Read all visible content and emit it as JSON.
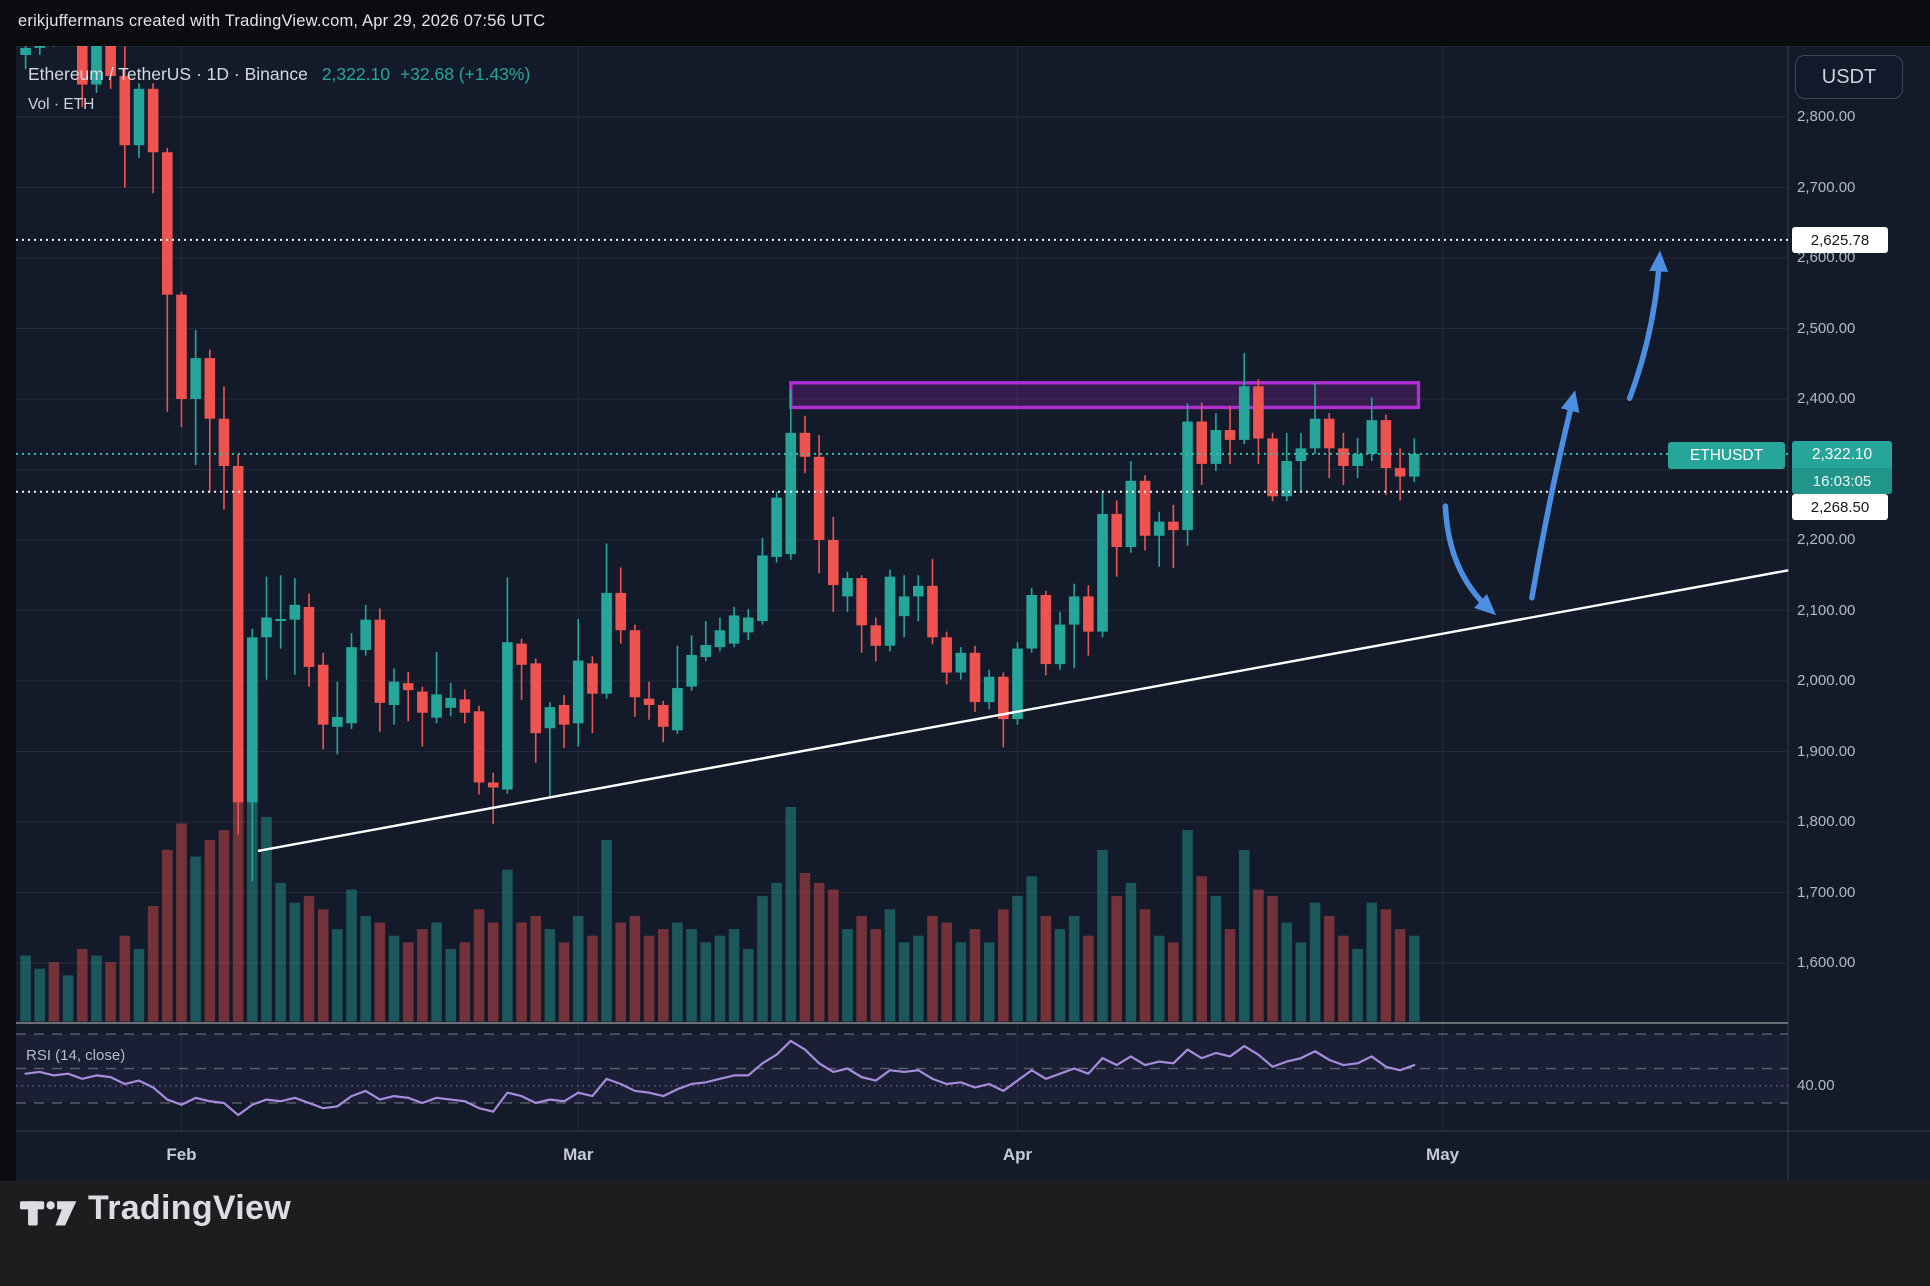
{
  "attribution": {
    "text": "erikjuffermans created with TradingView.com, Apr 29, 2026 07:56 UTC"
  },
  "header": {
    "symbol_title": "Ethereum / TetherUS · 1D · Binance",
    "price": "2,322.10",
    "change": "+32.68 (+1.43%)",
    "vol_label": "Vol · ETH"
  },
  "axis": {
    "currency": "USDT",
    "ticks": [
      {
        "label": "2,800.00",
        "value": 2800
      },
      {
        "label": "2,700.00",
        "value": 2700
      },
      {
        "label": "2,600.00",
        "value": 2600
      },
      {
        "label": "2,500.00",
        "value": 2500
      },
      {
        "label": "2,400.00",
        "value": 2400
      },
      {
        "label": "2,200.00",
        "value": 2200
      },
      {
        "label": "2,100.00",
        "value": 2100
      },
      {
        "label": "2,000.00",
        "value": 2000
      },
      {
        "label": "1,900.00",
        "value": 1900
      },
      {
        "label": "1,800.00",
        "value": 1800
      },
      {
        "label": "1,700.00",
        "value": 1700
      },
      {
        "label": "1,600.00",
        "value": 1600
      }
    ]
  },
  "levels": {
    "high_target": {
      "label": "2,625.78",
      "value": 2625.78
    },
    "current": {
      "symbol_label": "ETHUSDT",
      "label": "2,322.10",
      "countdown": "16:03:05",
      "value": 2322.1
    },
    "support": {
      "label": "2,268.50",
      "value": 2268.5
    }
  },
  "rsi": {
    "label": "RSI (14, close)",
    "tick": "40.00",
    "tick_value": 40
  },
  "time_axis": {
    "months": [
      {
        "label": "Feb",
        "bar_index": 11
      },
      {
        "label": "Mar",
        "bar_index": 39
      },
      {
        "label": "Apr",
        "bar_index": 70
      },
      {
        "label": "May",
        "bar_index": 100
      }
    ]
  },
  "footer": {
    "brand": "TradingView"
  },
  "colors": {
    "up": "#26a69a",
    "down": "#ef5350",
    "background": "#131a2a",
    "box_purple": "#b02fd2",
    "arrow_blue": "#4b8ee2",
    "current_line": "#35bfae",
    "trendline": "#ffffff",
    "rsi_line": "#a78bdc"
  },
  "chart_data": {
    "type": "candlestick",
    "symbol": "ETHUSDT",
    "exchange": "Binance",
    "interval": "1D",
    "title": "Ethereum / TetherUS 1D Binance",
    "visible_price_range": [
      1515,
      2909
    ],
    "rsi_bands": [
      70,
      50,
      30
    ],
    "levels": {
      "resistance_target": 2625.78,
      "last_price": 2322.1,
      "support": 2268.5
    },
    "resistance_box": {
      "from_bar": 54,
      "to_bar": 98.3,
      "top_price": 2423,
      "bottom_price": 2388
    },
    "trendline": {
      "from_bar": 16.4,
      "from_price": 1759,
      "to_bar": 124.4,
      "to_price": 2157
    },
    "arrows": [
      {
        "dir": "down",
        "from_bar": 100.2,
        "from_price": 2248,
        "ctrl_bar": 100.4,
        "ctrl_price": 2155,
        "to_bar": 103.3,
        "to_price": 2102
      },
      {
        "dir": "up",
        "from_bar": 106.3,
        "from_price": 2118,
        "ctrl_bar": 107.5,
        "ctrl_price": 2260,
        "to_bar": 109.2,
        "to_price": 2400
      },
      {
        "dir": "up",
        "from_bar": 113.2,
        "from_price": 2401,
        "ctrl_bar": 115.0,
        "ctrl_price": 2498,
        "to_bar": 115.3,
        "to_price": 2598
      }
    ],
    "candles_format": [
      "open",
      "high",
      "low",
      "close",
      "relative_volume",
      "rsi14"
    ],
    "candles": [
      [
        2888,
        2904,
        2868,
        2898,
        0.2,
        47
      ],
      [
        2898,
        2960,
        2888,
        2950,
        0.16,
        48
      ],
      [
        2950,
        2966,
        2900,
        2910,
        0.18,
        46
      ],
      [
        2910,
        2956,
        2902,
        2948,
        0.14,
        47
      ],
      [
        2948,
        2956,
        2814,
        2846,
        0.22,
        44
      ],
      [
        2846,
        2906,
        2834,
        2902,
        0.2,
        46
      ],
      [
        2902,
        2948,
        2840,
        2858,
        0.18,
        45
      ],
      [
        2858,
        2900,
        2700,
        2760,
        0.26,
        41
      ],
      [
        2760,
        2848,
        2742,
        2840,
        0.22,
        43
      ],
      [
        2840,
        2848,
        2692,
        2750,
        0.35,
        39
      ],
      [
        2750,
        2756,
        2382,
        2548,
        0.52,
        32
      ],
      [
        2548,
        2552,
        2360,
        2400,
        0.6,
        29
      ],
      [
        2400,
        2498,
        2306,
        2458,
        0.5,
        33
      ],
      [
        2458,
        2470,
        2268,
        2372,
        0.55,
        31
      ],
      [
        2372,
        2418,
        2243,
        2305,
        0.58,
        30
      ],
      [
        2305,
        2322,
        1782,
        1828,
        0.8,
        23
      ],
      [
        1828,
        2074,
        1716,
        2062,
        1.0,
        29
      ],
      [
        2062,
        2148,
        2002,
        2090,
        0.62,
        32
      ],
      [
        2085,
        2150,
        2046,
        2088,
        0.42,
        31
      ],
      [
        2087,
        2146,
        2009,
        2108,
        0.36,
        33
      ],
      [
        2105,
        2124,
        1992,
        2020,
        0.38,
        30
      ],
      [
        2023,
        2040,
        1903,
        1938,
        0.34,
        27
      ],
      [
        1935,
        1999,
        1896,
        1949,
        0.28,
        28
      ],
      [
        1940,
        2068,
        1932,
        2048,
        0.4,
        34
      ],
      [
        2044,
        2108,
        2036,
        2087,
        0.32,
        37
      ],
      [
        2087,
        2103,
        1928,
        1969,
        0.3,
        32
      ],
      [
        1966,
        2018,
        1938,
        1999,
        0.26,
        34
      ],
      [
        1997,
        2013,
        1943,
        1987,
        0.24,
        33
      ],
      [
        1985,
        1992,
        1907,
        1955,
        0.28,
        30
      ],
      [
        1948,
        2041,
        1940,
        1981,
        0.3,
        33
      ],
      [
        1962,
        1997,
        1950,
        1976,
        0.22,
        32
      ],
      [
        1974,
        1988,
        1940,
        1955,
        0.24,
        31
      ],
      [
        1957,
        1965,
        1839,
        1856,
        0.34,
        27
      ],
      [
        1856,
        1870,
        1797,
        1849,
        0.3,
        25
      ],
      [
        1846,
        2147,
        1840,
        2055,
        0.46,
        36
      ],
      [
        2053,
        2060,
        1973,
        2023,
        0.3,
        34
      ],
      [
        2025,
        2032,
        1884,
        1926,
        0.32,
        30
      ],
      [
        1933,
        1970,
        1836,
        1963,
        0.28,
        32
      ],
      [
        1966,
        1980,
        1905,
        1938,
        0.24,
        31
      ],
      [
        1940,
        2088,
        1907,
        2029,
        0.32,
        36
      ],
      [
        2025,
        2035,
        1926,
        1982,
        0.26,
        34
      ],
      [
        1982,
        2195,
        1975,
        2125,
        0.55,
        44
      ],
      [
        2125,
        2161,
        2053,
        2072,
        0.3,
        41
      ],
      [
        2072,
        2080,
        1949,
        1977,
        0.32,
        37
      ],
      [
        1975,
        1999,
        1945,
        1966,
        0.26,
        36
      ],
      [
        1966,
        1972,
        1913,
        1935,
        0.28,
        34
      ],
      [
        1930,
        2050,
        1925,
        1990,
        0.3,
        38
      ],
      [
        1992,
        2065,
        1986,
        2037,
        0.28,
        41
      ],
      [
        2034,
        2085,
        2028,
        2051,
        0.24,
        42
      ],
      [
        2048,
        2090,
        2042,
        2072,
        0.26,
        44
      ],
      [
        2053,
        2105,
        2048,
        2093,
        0.28,
        46
      ],
      [
        2069,
        2102,
        2058,
        2090,
        0.22,
        46
      ],
      [
        2085,
        2203,
        2080,
        2178,
        0.38,
        53
      ],
      [
        2176,
        2268,
        2168,
        2260,
        0.42,
        58
      ],
      [
        2180,
        2413,
        2172,
        2352,
        0.65,
        66
      ],
      [
        2352,
        2376,
        2295,
        2318,
        0.45,
        61
      ],
      [
        2318,
        2349,
        2153,
        2200,
        0.42,
        53
      ],
      [
        2200,
        2233,
        2098,
        2136,
        0.4,
        48
      ],
      [
        2120,
        2155,
        2098,
        2146,
        0.28,
        50
      ],
      [
        2146,
        2150,
        2040,
        2079,
        0.32,
        45
      ],
      [
        2079,
        2090,
        2028,
        2050,
        0.28,
        43
      ],
      [
        2050,
        2158,
        2042,
        2148,
        0.34,
        49
      ],
      [
        2092,
        2150,
        2062,
        2120,
        0.24,
        48
      ],
      [
        2120,
        2150,
        2085,
        2135,
        0.26,
        49
      ],
      [
        2135,
        2173,
        2052,
        2062,
        0.32,
        44
      ],
      [
        2062,
        2070,
        1995,
        2012,
        0.3,
        41
      ],
      [
        2012,
        2048,
        2002,
        2040,
        0.24,
        42
      ],
      [
        2040,
        2050,
        1956,
        1970,
        0.28,
        39
      ],
      [
        1970,
        2016,
        1960,
        2006,
        0.24,
        41
      ],
      [
        2006,
        2012,
        1906,
        1946,
        0.34,
        37
      ],
      [
        1946,
        2055,
        1938,
        2046,
        0.38,
        43
      ],
      [
        2046,
        2132,
        2040,
        2122,
        0.44,
        49
      ],
      [
        2122,
        2128,
        2008,
        2024,
        0.32,
        44
      ],
      [
        2024,
        2098,
        2016,
        2080,
        0.28,
        47
      ],
      [
        2080,
        2138,
        2018,
        2120,
        0.32,
        50
      ],
      [
        2120,
        2136,
        2036,
        2070,
        0.26,
        47
      ],
      [
        2070,
        2270,
        2062,
        2237,
        0.52,
        56
      ],
      [
        2237,
        2256,
        2148,
        2190,
        0.38,
        52
      ],
      [
        2190,
        2312,
        2182,
        2284,
        0.42,
        57
      ],
      [
        2284,
        2292,
        2185,
        2206,
        0.34,
        52
      ],
      [
        2206,
        2240,
        2162,
        2226,
        0.26,
        54
      ],
      [
        2226,
        2250,
        2160,
        2214,
        0.24,
        53
      ],
      [
        2214,
        2394,
        2192,
        2368,
        0.58,
        61
      ],
      [
        2368,
        2395,
        2278,
        2308,
        0.44,
        56
      ],
      [
        2308,
        2380,
        2298,
        2356,
        0.38,
        59
      ],
      [
        2356,
        2390,
        2308,
        2342,
        0.28,
        57
      ],
      [
        2342,
        2465,
        2336,
        2418,
        0.52,
        63
      ],
      [
        2418,
        2428,
        2308,
        2344,
        0.4,
        58
      ],
      [
        2344,
        2352,
        2255,
        2262,
        0.38,
        51
      ],
      [
        2262,
        2352,
        2255,
        2312,
        0.3,
        54
      ],
      [
        2312,
        2352,
        2268,
        2330,
        0.24,
        56
      ],
      [
        2330,
        2423,
        2322,
        2372,
        0.36,
        60
      ],
      [
        2372,
        2380,
        2288,
        2330,
        0.32,
        55
      ],
      [
        2330,
        2352,
        2278,
        2305,
        0.26,
        52
      ],
      [
        2305,
        2345,
        2288,
        2322,
        0.22,
        53
      ],
      [
        2322,
        2402,
        2312,
        2370,
        0.36,
        57
      ],
      [
        2370,
        2378,
        2264,
        2302,
        0.34,
        51
      ],
      [
        2302,
        2330,
        2256,
        2290,
        0.28,
        49
      ],
      [
        2290,
        2344,
        2282,
        2322.1,
        0.26,
        52
      ]
    ]
  }
}
